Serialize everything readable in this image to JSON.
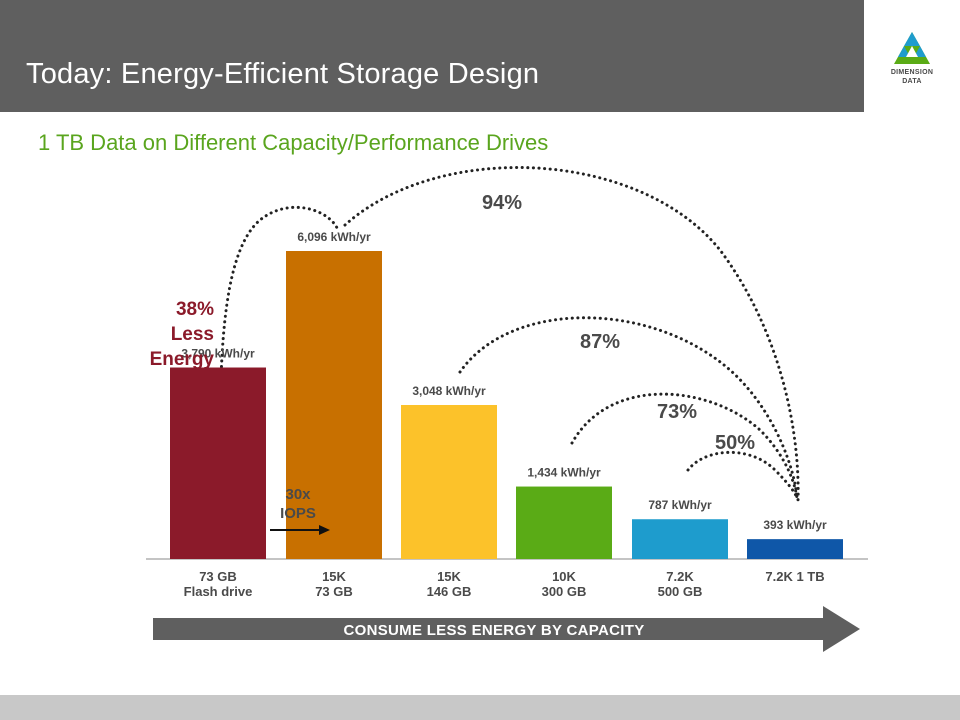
{
  "header": {
    "title": "Today: Energy-Efficient Storage Design",
    "logo_line1": "DIMENSION",
    "logo_line2": "DATA"
  },
  "subtitle": "1 TB Data on Different Capacity/Performance Drives",
  "chart_data": {
    "type": "bar",
    "categories": [
      [
        "73 GB",
        "Flash drive"
      ],
      [
        "15K",
        "73 GB"
      ],
      [
        "15K",
        "146 GB"
      ],
      [
        "10K",
        "300 GB"
      ],
      [
        "7.2K",
        "500 GB"
      ],
      [
        "7.2K 1 TB"
      ]
    ],
    "values": [
      3790,
      6096,
      3048,
      1434,
      787,
      393
    ],
    "value_labels": [
      "3,790 kWh/yr",
      "6,096 kWh/yr",
      "3,048 kWh/yr",
      "1,434 kWh/yr",
      "787 kWh/yr",
      "393 kWh/yr"
    ],
    "colors": [
      "#8b1a2a",
      "#c87000",
      "#fcc22a",
      "#5aab16",
      "#1e9ccd",
      "#0f57a8"
    ],
    "percent_labels": [
      "94%",
      "87%",
      "73%",
      "50%"
    ],
    "annotation_energy": [
      "38%",
      "Less",
      "Energy"
    ],
    "annotation_iops": [
      "30x",
      "IOPS"
    ],
    "footer_arrow": "CONSUME LESS ENERGY BY CAPACITY"
  }
}
